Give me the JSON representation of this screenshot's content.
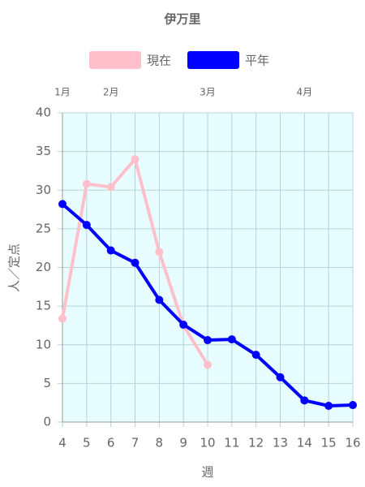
{
  "chart_data": {
    "type": "line",
    "title": "伊万里",
    "x": [
      4,
      5,
      6,
      7,
      8,
      9,
      10,
      11,
      12,
      13,
      14,
      15,
      16
    ],
    "series": [
      {
        "name": "現在",
        "color": "#ffc0cb",
        "values": [
          13.4,
          30.8,
          30.4,
          34,
          22,
          12.5,
          7.4,
          null,
          null,
          null,
          null,
          null,
          null
        ]
      },
      {
        "name": "平年",
        "color": "#0000ff",
        "values": [
          28.2,
          25.5,
          22.2,
          20.6,
          15.8,
          12.6,
          10.6,
          10.7,
          8.7,
          5.8,
          2.8,
          2.1,
          2.2
        ]
      }
    ],
    "xlim": [
      4,
      16
    ],
    "xticks": [
      4,
      5,
      6,
      7,
      8,
      9,
      10,
      11,
      12,
      13,
      14,
      15,
      16
    ],
    "ylim": [
      0,
      40
    ],
    "yticks": [
      0,
      5,
      10,
      15,
      20,
      25,
      30,
      35,
      40
    ],
    "month_labels": [
      {
        "value": 4,
        "label": "1月"
      },
      {
        "value": 6,
        "label": "2月"
      },
      {
        "value": 10,
        "label": "3月"
      },
      {
        "value": 14,
        "label": "4月"
      }
    ],
    "xlabel": "週",
    "ylabel": "人／定点",
    "grid": true,
    "background": "#e8fdff",
    "legend": "top"
  }
}
